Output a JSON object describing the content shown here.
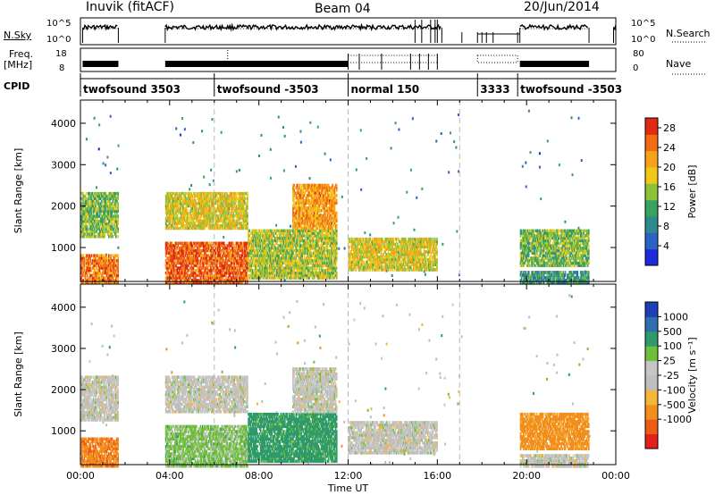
{
  "header": {
    "station": "Inuvik (fitACF)",
    "beam": "Beam 04",
    "date": "20/Jun/2014"
  },
  "top_panels": {
    "nsky_label": "N.Sky",
    "nsky_ticks": [
      "10^5",
      "10^0"
    ],
    "nsearch_label": "N.Search",
    "nsearch_ticks": [
      "10^5",
      "10^0"
    ],
    "freq_label": "Freq.",
    "freq_unit": "[MHz]",
    "freq_ticks": [
      "18",
      "8"
    ],
    "nave_label": "Nave",
    "nave_ticks": [
      "80",
      "0"
    ],
    "cpid_label": "CPID",
    "cpid_segments": [
      {
        "label": "twofsound 3503",
        "start": 0.0,
        "end": 6.0
      },
      {
        "label": "twofsound -3503",
        "start": 6.0,
        "end": 12.0
      },
      {
        "label": "normal 150",
        "start": 12.0,
        "end": 17.8
      },
      {
        "label": "3333",
        "start": 17.8,
        "end": 19.6
      },
      {
        "label": "twofsound -3503",
        "start": 19.6,
        "end": 24.0
      }
    ]
  },
  "colors": {
    "power": [
      "#1d2bd8",
      "#2b63c4",
      "#2f8a8e",
      "#3aa15f",
      "#8cc23a",
      "#f0c818",
      "#f7a21a",
      "#f26c14",
      "#e02a12"
    ],
    "velocity": [
      "#e3201a",
      "#ee5b16",
      "#f28f1c",
      "#f6b63a",
      "#bebebe",
      "#c6c6c6",
      "#6fbf3b",
      "#2f9a6a",
      "#2f6fb0",
      "#1d3fb8"
    ]
  },
  "chart_data": [
    {
      "type": "heatmap",
      "name": "power",
      "xlabel": "",
      "ylabel": "Slant Range [km]",
      "xlim": [
        0,
        24
      ],
      "ylim": [
        180,
        4560
      ],
      "x_ticks": [
        "00:00",
        "04:00",
        "08:00",
        "12:00",
        "16:00",
        "20:00",
        "00:00"
      ],
      "y_ticks": [
        "1000",
        "2000",
        "3000",
        "4000"
      ],
      "colorbar_label": "Power [dB]",
      "colorbar_ticks": [
        "4",
        "8",
        "12",
        "16",
        "20",
        "24",
        "28"
      ],
      "colorbar_range": [
        0,
        30
      ],
      "data_gaps": [
        [
          1.7,
          3.8
        ],
        [
          17.1,
          19.7
        ],
        [
          22.8,
          24.0
        ]
      ],
      "regions": [
        {
          "x": [
            0.0,
            1.7
          ],
          "y": [
            180,
            900
          ],
          "value": 24
        },
        {
          "x": [
            0.0,
            1.7
          ],
          "y": [
            1300,
            2400
          ],
          "value": 14
        },
        {
          "x": [
            3.8,
            7.5
          ],
          "y": [
            180,
            1200
          ],
          "value": 26
        },
        {
          "x": [
            3.8,
            7.5
          ],
          "y": [
            1500,
            2400
          ],
          "value": 18
        },
        {
          "x": [
            7.5,
            11.5
          ],
          "y": [
            300,
            1500
          ],
          "value": 16
        },
        {
          "x": [
            9.5,
            11.5
          ],
          "y": [
            1500,
            2600
          ],
          "value": 22
        },
        {
          "x": [
            12.0,
            16.0
          ],
          "y": [
            500,
            1300
          ],
          "value": 18
        },
        {
          "x": [
            19.7,
            22.8
          ],
          "y": [
            600,
            1500
          ],
          "value": 14
        },
        {
          "x": [
            19.7,
            22.8
          ],
          "y": [
            180,
            500
          ],
          "value": 10
        }
      ]
    },
    {
      "type": "heatmap",
      "name": "velocity",
      "xlabel": "Time UT",
      "ylabel": "Slant Range [km]",
      "xlim": [
        0,
        24
      ],
      "ylim": [
        180,
        4560
      ],
      "x_ticks": [
        "00:00",
        "04:00",
        "08:00",
        "12:00",
        "16:00",
        "20:00",
        "00:00"
      ],
      "y_ticks": [
        "1000",
        "2000",
        "3000",
        "4000"
      ],
      "colorbar_label": "Velocity [m s⁻¹]",
      "colorbar_ticks": [
        "1000",
        "500",
        "100",
        "25",
        "-25",
        "-100",
        "-500",
        "-1000"
      ],
      "data_gaps": [
        [
          1.7,
          3.8
        ],
        [
          17.1,
          19.7
        ],
        [
          22.8,
          24.0
        ]
      ],
      "regions": [
        {
          "x": [
            0.0,
            1.7
          ],
          "y": [
            180,
            900
          ],
          "value": -400
        },
        {
          "x": [
            0.0,
            1.7
          ],
          "y": [
            1300,
            2400
          ],
          "value": 0
        },
        {
          "x": [
            3.8,
            7.5
          ],
          "y": [
            180,
            1200
          ],
          "value": 50
        },
        {
          "x": [
            3.8,
            7.5
          ],
          "y": [
            1500,
            2400
          ],
          "value": 0
        },
        {
          "x": [
            7.5,
            11.5
          ],
          "y": [
            300,
            1500
          ],
          "value": 200
        },
        {
          "x": [
            9.5,
            11.5
          ],
          "y": [
            1500,
            2600
          ],
          "value": 0
        },
        {
          "x": [
            12.0,
            16.0
          ],
          "y": [
            500,
            1300
          ],
          "value": 0
        },
        {
          "x": [
            19.7,
            22.8
          ],
          "y": [
            600,
            1500
          ],
          "value": -200
        },
        {
          "x": [
            19.7,
            22.8
          ],
          "y": [
            180,
            500
          ],
          "value": 0
        }
      ]
    }
  ]
}
